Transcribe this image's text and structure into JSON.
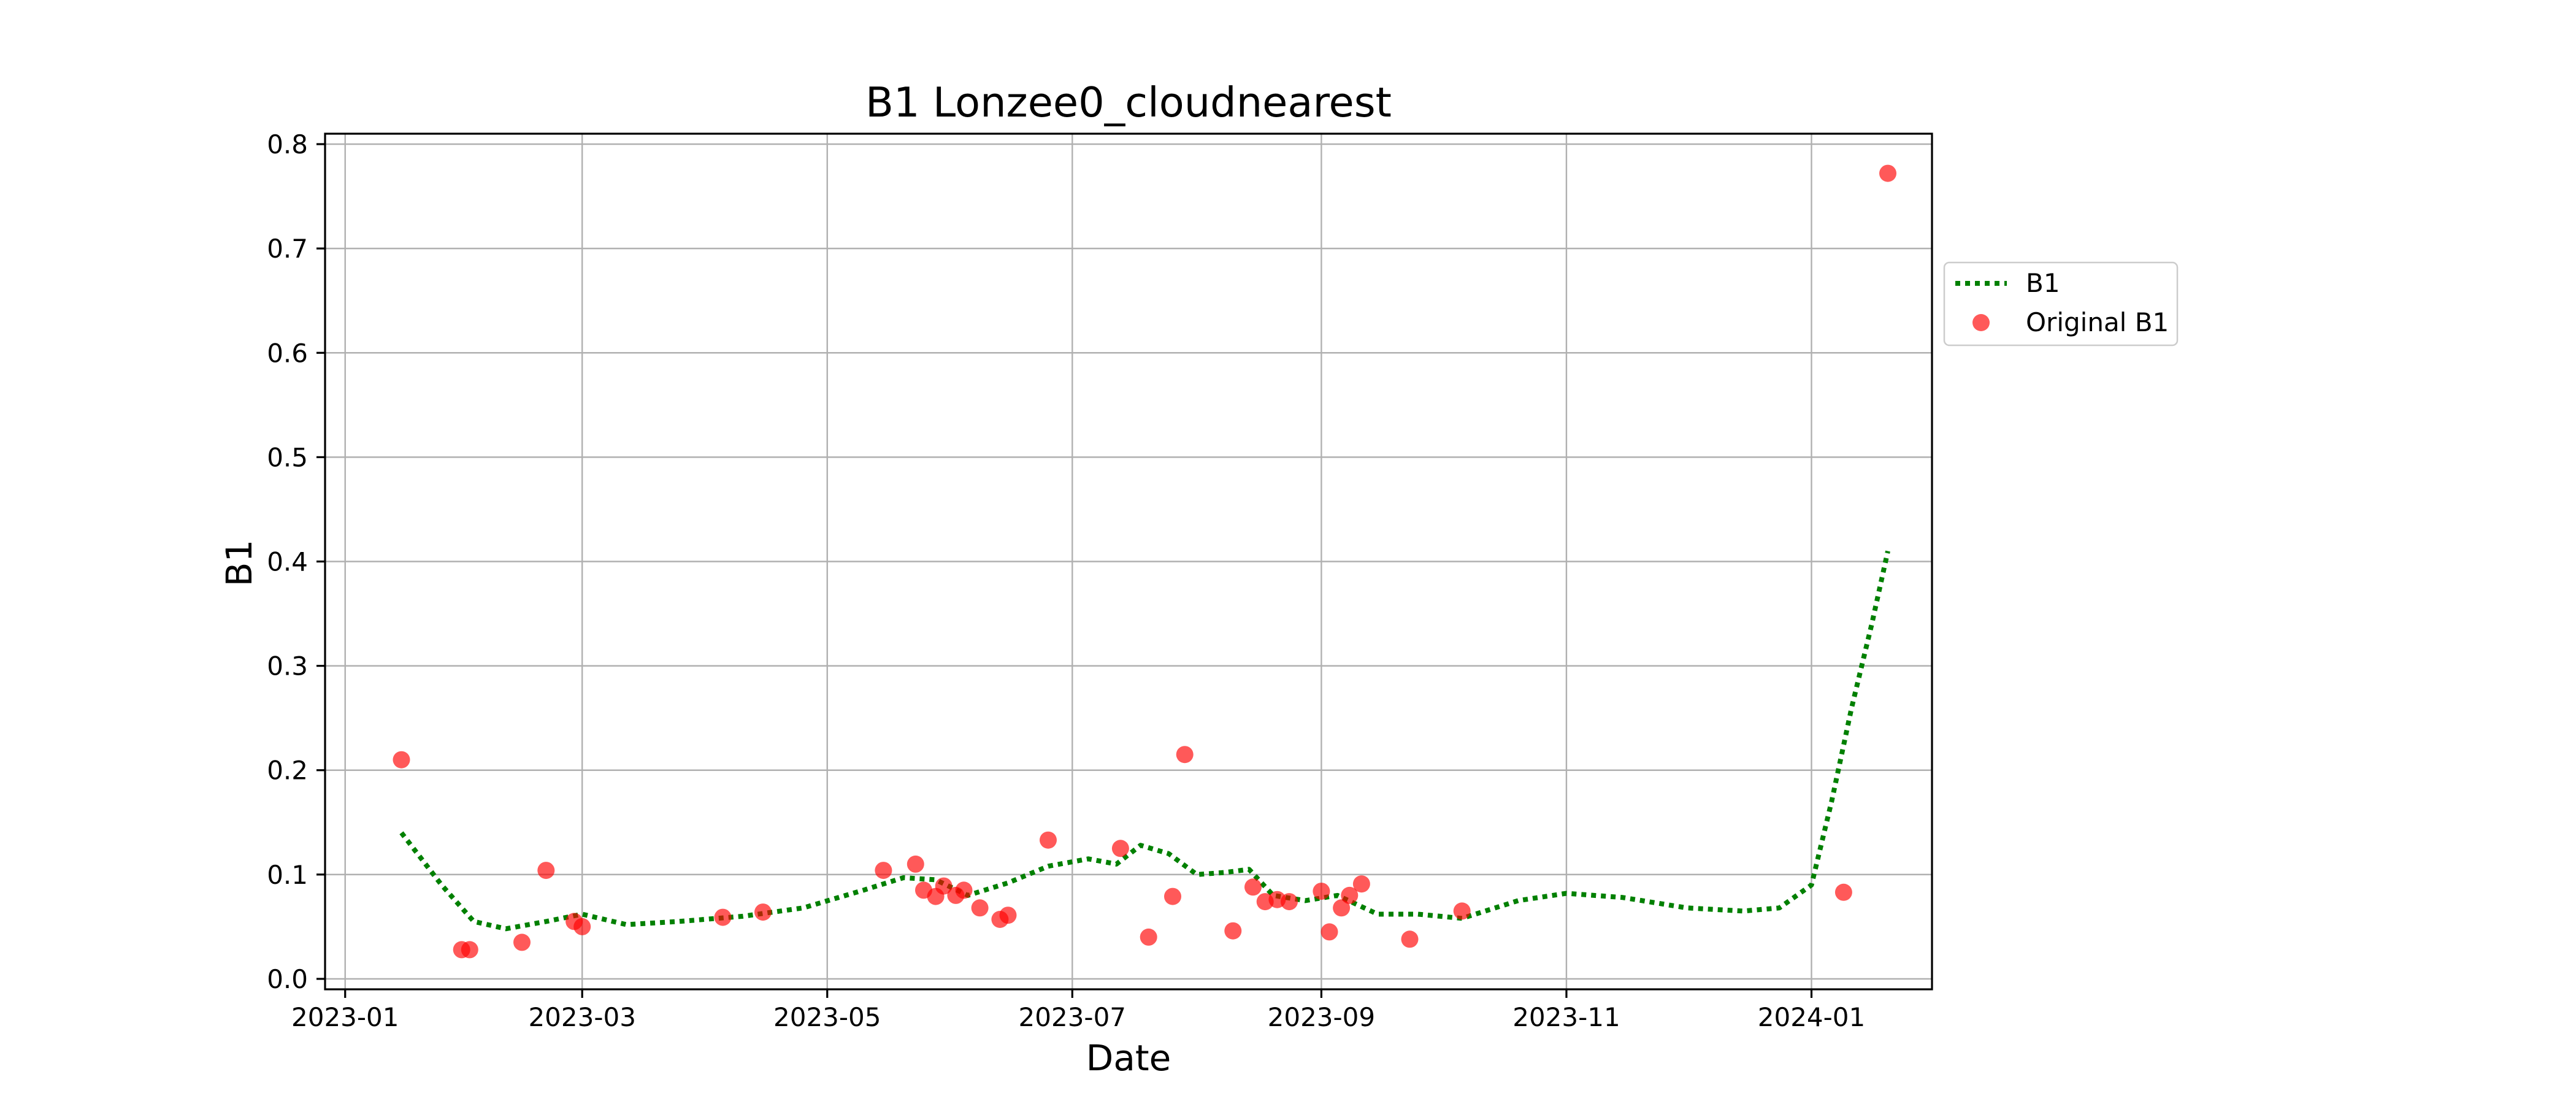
{
  "chart_data": {
    "type": "scatter",
    "title": "B1 Lonzee0_cloudnearest",
    "xlabel": "Date",
    "ylabel": "B1",
    "x_axis_type": "date",
    "xlim": [
      "2022-12-27",
      "2024-01-31"
    ],
    "ylim": [
      -0.01,
      0.81
    ],
    "xticks": [
      "2023-01",
      "2023-03",
      "2023-05",
      "2023-07",
      "2023-09",
      "2023-11",
      "2024-01"
    ],
    "yticks": [
      "0.0",
      "0.1",
      "0.2",
      "0.3",
      "0.4",
      "0.5",
      "0.6",
      "0.7",
      "0.8"
    ],
    "grid": true,
    "legend_position": "outside right",
    "colors": {
      "line": "#008000",
      "points": "#ff0000"
    },
    "series": [
      {
        "name": "B1",
        "kind": "line",
        "style": "dotted",
        "x": [
          "2023-01-15",
          "2023-01-25",
          "2023-02-02",
          "2023-02-10",
          "2023-02-20",
          "2023-03-01",
          "2023-03-12",
          "2023-03-25",
          "2023-04-10",
          "2023-04-25",
          "2023-05-10",
          "2023-05-20",
          "2023-05-28",
          "2023-06-05",
          "2023-06-15",
          "2023-06-25",
          "2023-07-05",
          "2023-07-12",
          "2023-07-18",
          "2023-07-25",
          "2023-08-01",
          "2023-08-08",
          "2023-08-14",
          "2023-08-20",
          "2023-08-28",
          "2023-09-05",
          "2023-09-15",
          "2023-09-25",
          "2023-10-06",
          "2023-10-20",
          "2023-11-01",
          "2023-11-15",
          "2023-12-01",
          "2023-12-15",
          "2023-12-24",
          "2024-01-01",
          "2024-01-06",
          "2024-01-11",
          "2024-01-16",
          "2024-01-20"
        ],
        "y": [
          0.14,
          0.09,
          0.055,
          0.048,
          0.055,
          0.062,
          0.052,
          0.055,
          0.06,
          0.068,
          0.085,
          0.097,
          0.095,
          0.08,
          0.092,
          0.108,
          0.115,
          0.11,
          0.128,
          0.12,
          0.1,
          0.102,
          0.105,
          0.08,
          0.075,
          0.08,
          0.062,
          0.062,
          0.058,
          0.075,
          0.082,
          0.078,
          0.068,
          0.065,
          0.068,
          0.09,
          0.17,
          0.26,
          0.34,
          0.41
        ]
      },
      {
        "name": "Original B1",
        "kind": "scatter",
        "x": [
          "2023-01-15",
          "2023-01-30",
          "2023-02-01",
          "2023-02-14",
          "2023-02-20",
          "2023-02-27",
          "2023-03-01",
          "2023-04-05",
          "2023-04-15",
          "2023-05-15",
          "2023-05-23",
          "2023-05-25",
          "2023-05-28",
          "2023-05-30",
          "2023-06-02",
          "2023-06-04",
          "2023-06-08",
          "2023-06-13",
          "2023-06-15",
          "2023-06-25",
          "2023-07-13",
          "2023-07-20",
          "2023-07-26",
          "2023-07-29",
          "2023-08-10",
          "2023-08-15",
          "2023-08-18",
          "2023-08-21",
          "2023-08-24",
          "2023-09-01",
          "2023-09-03",
          "2023-09-06",
          "2023-09-08",
          "2023-09-11",
          "2023-09-23",
          "2023-10-06",
          "2024-01-09",
          "2024-01-20"
        ],
        "y": [
          0.21,
          0.028,
          0.028,
          0.035,
          0.104,
          0.055,
          0.05,
          0.059,
          0.064,
          0.104,
          0.11,
          0.085,
          0.079,
          0.089,
          0.08,
          0.085,
          0.068,
          0.057,
          0.061,
          0.133,
          0.125,
          0.04,
          0.079,
          0.215,
          0.046,
          0.088,
          0.074,
          0.076,
          0.074,
          0.084,
          0.045,
          0.068,
          0.08,
          0.091,
          0.038,
          0.065,
          0.083,
          0.772
        ]
      }
    ]
  }
}
